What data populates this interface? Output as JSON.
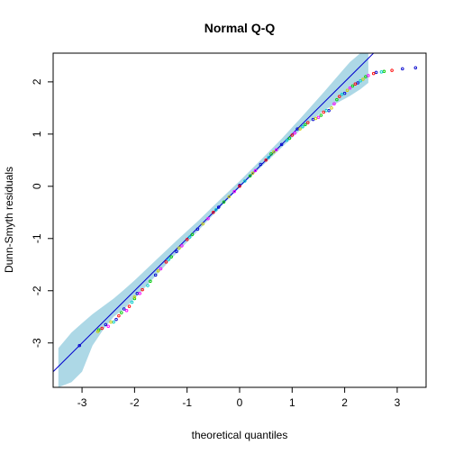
{
  "chart_data": {
    "type": "scatter",
    "title": "Normal Q-Q",
    "xlabel": "theoretical quantiles",
    "ylabel": "Dunn-Smyth residuals",
    "xlim": [
      -3.55,
      3.55
    ],
    "ylim": [
      -3.85,
      2.55
    ],
    "x_ticks": [
      -3,
      -2,
      -1,
      0,
      1,
      2,
      3
    ],
    "y_ticks": [
      -3,
      -2,
      -1,
      0,
      1,
      2
    ],
    "grid": false,
    "reference_line": {
      "slope": 1.0,
      "intercept": 0.0,
      "color": "#0000cd"
    },
    "envelope": {
      "color": "#add8e6",
      "x": [
        -3.45,
        -3.2,
        -3.0,
        -2.8,
        -2.6,
        -2.4,
        -2.2,
        -2.0,
        -1.6,
        -1.2,
        -0.8,
        -0.4,
        0.0,
        0.4,
        0.8,
        1.2,
        1.6,
        1.9,
        2.1,
        2.3,
        2.45
      ],
      "lower": [
        -3.85,
        -3.75,
        -3.55,
        -3.05,
        -2.75,
        -2.5,
        -2.35,
        -2.15,
        -1.72,
        -1.28,
        -0.86,
        -0.44,
        -0.02,
        0.36,
        0.74,
        1.12,
        1.45,
        1.62,
        1.73,
        1.86,
        1.98
      ],
      "upper": [
        -3.1,
        -2.8,
        -2.62,
        -2.45,
        -2.3,
        -2.15,
        -1.98,
        -1.8,
        -1.42,
        -1.04,
        -0.67,
        -0.28,
        0.1,
        0.5,
        0.91,
        1.35,
        1.8,
        2.15,
        2.38,
        2.55,
        2.55
      ]
    },
    "series": [
      {
        "color": "#0000cd",
        "points": [
          [
            -3.05,
            -3.05
          ],
          [
            -2.55,
            -2.65
          ],
          [
            -2.35,
            -2.55
          ],
          [
            -2.2,
            -2.35
          ],
          [
            -1.95,
            -2.05
          ],
          [
            -1.6,
            -1.7
          ],
          [
            -1.2,
            -1.25
          ],
          [
            -0.8,
            -0.82
          ],
          [
            -0.4,
            -0.4
          ],
          [
            0.0,
            0.02
          ],
          [
            0.4,
            0.42
          ],
          [
            0.8,
            0.8
          ],
          [
            1.1,
            1.1
          ],
          [
            1.4,
            1.28
          ],
          [
            1.7,
            1.45
          ],
          [
            2.0,
            1.78
          ],
          [
            2.25,
            1.98
          ],
          [
            2.6,
            2.18
          ],
          [
            3.1,
            2.25
          ],
          [
            3.35,
            2.27
          ]
        ]
      },
      {
        "color": "#ff0000",
        "points": [
          [
            -2.62,
            -2.72
          ],
          [
            -2.3,
            -2.48
          ],
          [
            -2.1,
            -2.3
          ],
          [
            -1.85,
            -1.98
          ],
          [
            -1.4,
            -1.45
          ],
          [
            -1.0,
            -1.02
          ],
          [
            -0.5,
            -0.5
          ],
          [
            0.0,
            0.0
          ],
          [
            0.5,
            0.5
          ],
          [
            1.0,
            0.98
          ],
          [
            1.3,
            1.22
          ],
          [
            1.6,
            1.42
          ],
          [
            1.9,
            1.72
          ],
          [
            2.2,
            1.96
          ],
          [
            2.55,
            2.16
          ],
          [
            2.9,
            2.22
          ]
        ]
      },
      {
        "color": "#00cc00",
        "points": [
          [
            -2.68,
            -2.75
          ],
          [
            -2.25,
            -2.42
          ],
          [
            -2.0,
            -2.15
          ],
          [
            -1.7,
            -1.82
          ],
          [
            -1.3,
            -1.35
          ],
          [
            -0.9,
            -0.92
          ],
          [
            -0.3,
            -0.3
          ],
          [
            0.2,
            0.2
          ],
          [
            0.6,
            0.62
          ],
          [
            0.95,
            0.92
          ],
          [
            1.25,
            1.18
          ],
          [
            1.55,
            1.36
          ],
          [
            1.85,
            1.66
          ],
          [
            2.15,
            1.92
          ],
          [
            2.4,
            2.1
          ],
          [
            2.75,
            2.2
          ]
        ]
      },
      {
        "color": "#ff00ff",
        "points": [
          [
            -2.5,
            -2.68
          ],
          [
            -2.15,
            -2.38
          ],
          [
            -1.9,
            -2.05
          ],
          [
            -1.5,
            -1.58
          ],
          [
            -1.1,
            -1.14
          ],
          [
            -0.6,
            -0.62
          ],
          [
            -0.1,
            -0.1
          ],
          [
            0.3,
            0.3
          ],
          [
            0.7,
            0.7
          ],
          [
            1.05,
            1.02
          ],
          [
            1.5,
            1.32
          ],
          [
            1.8,
            1.58
          ],
          [
            2.1,
            1.88
          ],
          [
            2.45,
            2.12
          ]
        ]
      },
      {
        "color": "#00cccc",
        "points": [
          [
            -2.4,
            -2.6
          ],
          [
            -2.05,
            -2.22
          ],
          [
            -1.75,
            -1.9
          ],
          [
            -1.35,
            -1.4
          ],
          [
            -0.95,
            -0.97
          ],
          [
            -0.45,
            -0.45
          ],
          [
            0.1,
            0.1
          ],
          [
            0.55,
            0.55
          ],
          [
            0.9,
            0.88
          ],
          [
            1.2,
            1.14
          ],
          [
            1.65,
            1.45
          ],
          [
            1.95,
            1.76
          ],
          [
            2.3,
            2.02
          ],
          [
            2.7,
            2.19
          ]
        ]
      },
      {
        "color": "#cccc00",
        "points": [
          [
            -2.7,
            -2.78
          ],
          [
            -2.45,
            -2.6
          ],
          [
            -2.0,
            -2.12
          ],
          [
            -1.55,
            -1.62
          ],
          [
            -1.15,
            -1.18
          ],
          [
            -0.7,
            -0.72
          ],
          [
            -0.2,
            -0.2
          ],
          [
            0.25,
            0.25
          ],
          [
            0.65,
            0.66
          ],
          [
            1.15,
            1.1
          ],
          [
            1.45,
            1.3
          ],
          [
            1.75,
            1.5
          ],
          [
            2.05,
            1.84
          ],
          [
            2.35,
            2.05
          ]
        ]
      }
    ]
  }
}
